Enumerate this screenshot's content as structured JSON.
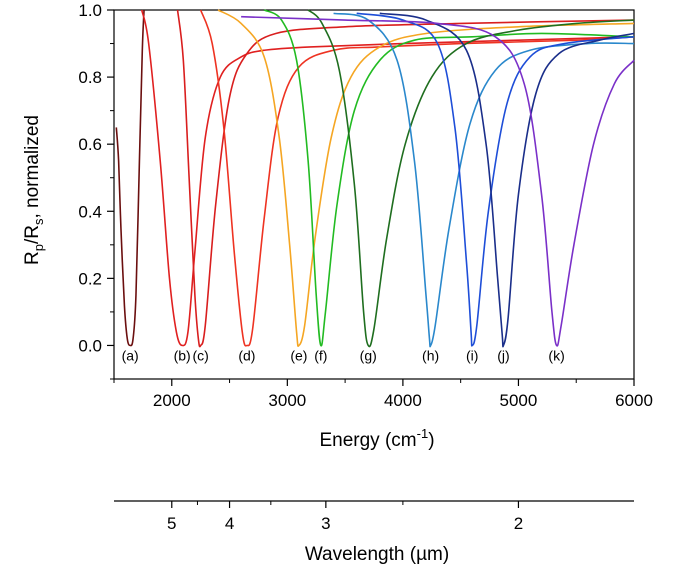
{
  "chart_data": {
    "type": "line",
    "xlabel": "Energy (cm",
    "xlabel_sup": "-1",
    "xlabel_end": ")",
    "ylabel_R": "R",
    "ylabel_p": "p",
    "ylabel_slash": "/R",
    "ylabel_s": "s",
    "ylabel_rest": ", normalized",
    "x2label": "Wavelength (µm)",
    "xlim": [
      1500,
      6000
    ],
    "ylim": [
      -0.1,
      1.0
    ],
    "x_ticks": [
      2000,
      3000,
      4000,
      5000,
      6000
    ],
    "x_tick_labels": [
      "2000",
      "3000",
      "4000",
      "5000",
      "6000"
    ],
    "y_ticks": [
      0.0,
      0.2,
      0.4,
      0.6,
      0.8,
      1.0
    ],
    "y_tick_labels": [
      "0.0",
      "0.2",
      "0.4",
      "0.6",
      "0.8",
      "1.0"
    ],
    "x2_ticks_um": [
      5,
      4,
      3,
      2
    ],
    "x2_tick_labels": [
      "5",
      "4",
      "3",
      "2"
    ],
    "grid": false,
    "series": [
      {
        "label": "(a)",
        "color": "#6b0f0f",
        "center": 1640,
        "left": [
          [
            1520,
            0.65
          ],
          [
            1540,
            0.55
          ],
          [
            1560,
            0.35
          ],
          [
            1590,
            0.12
          ],
          [
            1615,
            0.02
          ],
          [
            1640,
            0.0
          ]
        ],
        "right": [
          [
            1640,
            0.0
          ],
          [
            1665,
            0.02
          ],
          [
            1690,
            0.15
          ],
          [
            1720,
            0.55
          ],
          [
            1745,
            0.88
          ],
          [
            1760,
            1.0
          ]
        ]
      },
      {
        "label": "(b)",
        "color": "#e02020",
        "center": 2090,
        "left": [
          [
            1740,
            1.0
          ],
          [
            1800,
            0.9
          ],
          [
            1900,
            0.55
          ],
          [
            1980,
            0.2
          ],
          [
            2040,
            0.04
          ],
          [
            2090,
            0.0
          ]
        ],
        "right": [
          [
            2090,
            0.0
          ],
          [
            2140,
            0.04
          ],
          [
            2200,
            0.28
          ],
          [
            2290,
            0.62
          ],
          [
            2420,
            0.8
          ],
          [
            2600,
            0.86
          ],
          [
            2800,
            0.88
          ],
          [
            3200,
            0.89
          ],
          [
            4000,
            0.9
          ],
          [
            5000,
            0.91
          ],
          [
            6000,
            0.92
          ]
        ]
      },
      {
        "label": "(c)",
        "color": "#d91e1e",
        "center": 2250,
        "left": [
          [
            2050,
            1.0
          ],
          [
            2100,
            0.85
          ],
          [
            2150,
            0.5
          ],
          [
            2200,
            0.15
          ],
          [
            2230,
            0.02
          ],
          [
            2250,
            0.0
          ]
        ],
        "right": [
          [
            2250,
            0.0
          ],
          [
            2290,
            0.06
          ],
          [
            2380,
            0.42
          ],
          [
            2500,
            0.74
          ],
          [
            2650,
            0.87
          ],
          [
            2900,
            0.93
          ],
          [
            3500,
            0.95
          ],
          [
            4500,
            0.96
          ],
          [
            6000,
            0.97
          ]
        ]
      },
      {
        "label": "(d)",
        "color": "#ee3322",
        "center": 2650,
        "left": [
          [
            2250,
            1.0
          ],
          [
            2350,
            0.9
          ],
          [
            2450,
            0.65
          ],
          [
            2540,
            0.28
          ],
          [
            2610,
            0.04
          ],
          [
            2650,
            0.0
          ]
        ],
        "right": [
          [
            2650,
            0.0
          ],
          [
            2700,
            0.05
          ],
          [
            2800,
            0.38
          ],
          [
            2920,
            0.68
          ],
          [
            3100,
            0.83
          ],
          [
            3400,
            0.88
          ],
          [
            3800,
            0.89
          ],
          [
            4500,
            0.9
          ],
          [
            5500,
            0.91
          ],
          [
            6000,
            0.92
          ]
        ]
      },
      {
        "label": "(e)",
        "color": "#f5a623",
        "center": 3100,
        "left": [
          [
            2400,
            1.0
          ],
          [
            2600,
            0.96
          ],
          [
            2800,
            0.86
          ],
          [
            2930,
            0.62
          ],
          [
            3020,
            0.3
          ],
          [
            3080,
            0.04
          ],
          [
            3100,
            0.0
          ]
        ],
        "right": [
          [
            3100,
            0.0
          ],
          [
            3150,
            0.06
          ],
          [
            3240,
            0.32
          ],
          [
            3380,
            0.62
          ],
          [
            3550,
            0.8
          ],
          [
            3800,
            0.89
          ],
          [
            4200,
            0.93
          ],
          [
            5000,
            0.95
          ],
          [
            6000,
            0.96
          ]
        ]
      },
      {
        "label": "(f)",
        "color": "#22bb22",
        "center": 3290,
        "left": [
          [
            2800,
            1.0
          ],
          [
            2950,
            0.97
          ],
          [
            3080,
            0.85
          ],
          [
            3180,
            0.55
          ],
          [
            3250,
            0.15
          ],
          [
            3290,
            0.0
          ]
        ],
        "right": [
          [
            3290,
            0.0
          ],
          [
            3330,
            0.1
          ],
          [
            3430,
            0.42
          ],
          [
            3580,
            0.7
          ],
          [
            3800,
            0.85
          ],
          [
            4100,
            0.91
          ],
          [
            4600,
            0.92
          ],
          [
            5200,
            0.93
          ],
          [
            6000,
            0.92
          ]
        ]
      },
      {
        "label": "(g)",
        "color": "#1f6e1f",
        "center": 3700,
        "left": [
          [
            3180,
            1.0
          ],
          [
            3300,
            0.96
          ],
          [
            3450,
            0.82
          ],
          [
            3580,
            0.48
          ],
          [
            3660,
            0.1
          ],
          [
            3700,
            0.0
          ]
        ],
        "right": [
          [
            3700,
            0.0
          ],
          [
            3750,
            0.05
          ],
          [
            3860,
            0.32
          ],
          [
            4020,
            0.6
          ],
          [
            4250,
            0.8
          ],
          [
            4550,
            0.9
          ],
          [
            5000,
            0.94
          ],
          [
            5500,
            0.96
          ],
          [
            6000,
            0.97
          ]
        ]
      },
      {
        "label": "(h)",
        "color": "#2a88cc",
        "center": 4240,
        "left": [
          [
            3400,
            0.99
          ],
          [
            3700,
            0.97
          ],
          [
            3950,
            0.85
          ],
          [
            4100,
            0.55
          ],
          [
            4200,
            0.15
          ],
          [
            4230,
            0.02
          ],
          [
            4240,
            0.0
          ]
        ],
        "right": [
          [
            4240,
            0.0
          ],
          [
            4280,
            0.06
          ],
          [
            4400,
            0.35
          ],
          [
            4580,
            0.66
          ],
          [
            4800,
            0.82
          ],
          [
            5100,
            0.88
          ],
          [
            5600,
            0.9
          ],
          [
            6000,
            0.9
          ]
        ]
      },
      {
        "label": "(i)",
        "color": "#1e4ed8",
        "center": 4600,
        "left": [
          [
            3600,
            0.99
          ],
          [
            4000,
            0.97
          ],
          [
            4300,
            0.9
          ],
          [
            4450,
            0.65
          ],
          [
            4550,
            0.25
          ],
          [
            4590,
            0.04
          ],
          [
            4600,
            0.0
          ]
        ],
        "right": [
          [
            4600,
            0.0
          ],
          [
            4640,
            0.06
          ],
          [
            4740,
            0.4
          ],
          [
            4900,
            0.72
          ],
          [
            5100,
            0.86
          ],
          [
            5400,
            0.9
          ],
          [
            6000,
            0.92
          ]
        ]
      },
      {
        "label": "(j)",
        "color": "#1a2e8a",
        "center": 4870,
        "left": [
          [
            3800,
            0.99
          ],
          [
            4200,
            0.97
          ],
          [
            4550,
            0.88
          ],
          [
            4720,
            0.6
          ],
          [
            4820,
            0.2
          ],
          [
            4860,
            0.03
          ],
          [
            4870,
            0.0
          ]
        ],
        "right": [
          [
            4870,
            0.0
          ],
          [
            4910,
            0.08
          ],
          [
            5000,
            0.45
          ],
          [
            5150,
            0.75
          ],
          [
            5350,
            0.87
          ],
          [
            5700,
            0.91
          ],
          [
            6000,
            0.93
          ]
        ]
      },
      {
        "label": "(k)",
        "color": "#7a30c8",
        "center": 5330,
        "left": [
          [
            2600,
            0.98
          ],
          [
            3500,
            0.97
          ],
          [
            4300,
            0.96
          ],
          [
            4800,
            0.92
          ],
          [
            5050,
            0.78
          ],
          [
            5200,
            0.45
          ],
          [
            5290,
            0.1
          ],
          [
            5330,
            0.0
          ]
        ],
        "right": [
          [
            5330,
            0.0
          ],
          [
            5370,
            0.06
          ],
          [
            5480,
            0.3
          ],
          [
            5650,
            0.6
          ],
          [
            5830,
            0.78
          ],
          [
            6000,
            0.85
          ]
        ]
      }
    ]
  }
}
